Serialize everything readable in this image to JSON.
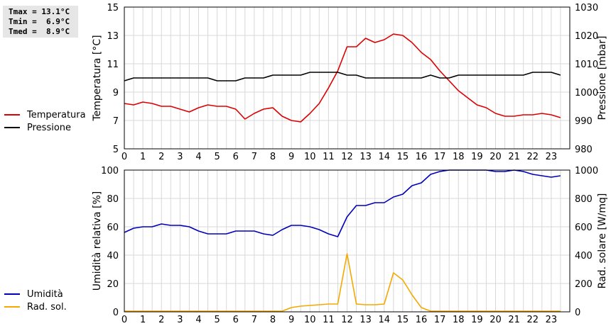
{
  "stats": {
    "line1": "Tmax = 13.1°C",
    "line2": "Tmin =  6.9°C",
    "line3": "Tmed =  8.9°C"
  },
  "colors": {
    "temperatura": "#dd0000",
    "pressione": "#000000",
    "umidita": "#0000bb",
    "radsol": "#f5a800",
    "grid": "#d8d8d8"
  },
  "legend_top": [
    {
      "label": "Temperatura",
      "color": "#dd0000"
    },
    {
      "label": "Pressione",
      "color": "#000000"
    }
  ],
  "legend_bottom": [
    {
      "label": "Umidità",
      "color": "#0000bb"
    },
    {
      "label": "Rad. sol.",
      "color": "#f5a800"
    }
  ],
  "chart_data": [
    {
      "type": "line",
      "ylabel": "Temperatura [°C]",
      "y2label": "Pressione [mbar]",
      "xlim": [
        0,
        24
      ],
      "ylim": [
        5,
        15
      ],
      "y2lim": [
        980,
        1030
      ],
      "xticks": [
        "0",
        "1",
        "2",
        "3",
        "4",
        "5",
        "6",
        "7",
        "8",
        "9",
        "10",
        "11",
        "12",
        "13",
        "14",
        "15",
        "16",
        "17",
        "18",
        "19",
        "20",
        "21",
        "22",
        "23"
      ],
      "yticks": [
        "5",
        "7",
        "9",
        "11",
        "13",
        "15"
      ],
      "y2ticks": [
        "980",
        "990",
        "1000",
        "1010",
        "1020",
        "1030"
      ],
      "grid": true,
      "series": [
        {
          "name": "Temperatura",
          "axis": "left",
          "x": [
            0,
            0.5,
            1,
            1.5,
            2,
            2.5,
            3,
            3.5,
            4,
            4.5,
            5,
            5.5,
            6,
            6.5,
            7,
            7.5,
            8,
            8.5,
            9,
            9.5,
            10,
            10.5,
            11,
            11.5,
            12,
            12.5,
            13,
            13.5,
            14,
            14.5,
            15,
            15.5,
            16,
            16.5,
            17,
            17.5,
            18,
            18.5,
            19,
            19.5,
            20,
            20.5,
            21,
            21.5,
            22,
            22.5,
            23,
            23.5
          ],
          "values": [
            8.2,
            8.1,
            8.3,
            8.2,
            8.0,
            8.0,
            7.8,
            7.6,
            7.9,
            8.1,
            8.0,
            8.0,
            7.8,
            7.1,
            7.5,
            7.8,
            7.9,
            7.3,
            7.0,
            6.9,
            7.5,
            8.2,
            9.3,
            10.5,
            12.2,
            12.2,
            12.8,
            12.5,
            12.7,
            13.1,
            13.0,
            12.5,
            11.8,
            11.3,
            10.5,
            9.8,
            9.1,
            8.6,
            8.1,
            7.9,
            7.5,
            7.3,
            7.3,
            7.4,
            7.4,
            7.5,
            7.4,
            7.2
          ]
        },
        {
          "name": "Pressione",
          "axis": "right",
          "x": [
            0,
            0.5,
            1,
            1.5,
            2,
            2.5,
            3,
            3.5,
            4,
            4.5,
            5,
            5.5,
            6,
            6.5,
            7,
            7.5,
            8,
            8.5,
            9,
            9.5,
            10,
            10.5,
            11,
            11.5,
            12,
            12.5,
            13,
            13.5,
            14,
            14.5,
            15,
            15.5,
            16,
            16.5,
            17,
            17.5,
            18,
            18.5,
            19,
            19.5,
            20,
            20.5,
            21,
            21.5,
            22,
            22.5,
            23,
            23.5
          ],
          "values": [
            1004,
            1005,
            1005,
            1005,
            1005,
            1005,
            1005,
            1005,
            1005,
            1005,
            1004,
            1004,
            1004,
            1005,
            1005,
            1005,
            1006,
            1006,
            1006,
            1006,
            1007,
            1007,
            1007,
            1007,
            1006,
            1006,
            1005,
            1005,
            1005,
            1005,
            1005,
            1005,
            1005,
            1006,
            1005,
            1005,
            1006,
            1006,
            1006,
            1006,
            1006,
            1006,
            1006,
            1006,
            1007,
            1007,
            1007,
            1006
          ]
        }
      ]
    },
    {
      "type": "line",
      "ylabel": "Umidità relativa [%]",
      "y2label": "Rad. solare [W/mq]",
      "xlim": [
        0,
        24
      ],
      "ylim": [
        0,
        100
      ],
      "y2lim": [
        0,
        1000
      ],
      "xticks": [
        "0",
        "1",
        "2",
        "3",
        "4",
        "5",
        "6",
        "7",
        "8",
        "9",
        "10",
        "11",
        "12",
        "13",
        "14",
        "15",
        "16",
        "17",
        "18",
        "19",
        "20",
        "21",
        "22",
        "23"
      ],
      "yticks": [
        "0",
        "20",
        "40",
        "60",
        "80",
        "100"
      ],
      "y2ticks": [
        "0",
        "200",
        "400",
        "600",
        "800",
        "1000"
      ],
      "grid": true,
      "series": [
        {
          "name": "Umidità",
          "axis": "left",
          "x": [
            0,
            0.5,
            1,
            1.5,
            2,
            2.5,
            3,
            3.5,
            4,
            4.5,
            5,
            5.5,
            6,
            6.5,
            7,
            7.5,
            8,
            8.5,
            9,
            9.5,
            10,
            10.5,
            11,
            11.5,
            12,
            12.5,
            13,
            13.5,
            14,
            14.5,
            15,
            15.5,
            16,
            16.5,
            17,
            17.5,
            18,
            18.5,
            19,
            19.5,
            20,
            20.5,
            21,
            21.5,
            22,
            22.5,
            23,
            23.5
          ],
          "values": [
            56,
            59,
            60,
            60,
            62,
            61,
            61,
            60,
            57,
            55,
            55,
            55,
            57,
            57,
            57,
            55,
            54,
            58,
            61,
            61,
            60,
            58,
            55,
            53,
            67,
            75,
            75,
            77,
            77,
            81,
            83,
            89,
            91,
            97,
            99,
            100,
            100,
            100,
            100,
            100,
            99,
            99,
            100,
            99,
            97,
            96,
            95,
            96
          ]
        },
        {
          "name": "Rad. sol.",
          "axis": "right",
          "x": [
            0,
            0.5,
            1,
            1.5,
            2,
            2.5,
            3,
            3.5,
            4,
            4.5,
            5,
            5.5,
            6,
            6.5,
            7,
            7.5,
            8,
            8.5,
            9,
            9.5,
            10,
            10.5,
            11,
            11.5,
            12,
            12.5,
            13,
            13.5,
            14,
            14.5,
            15,
            15.5,
            16,
            16.5,
            17,
            17.5,
            18,
            18.5,
            19,
            19.5,
            20,
            20.5,
            21,
            21.5,
            22,
            22.5,
            23,
            23.5
          ],
          "values": [
            5,
            5,
            5,
            5,
            5,
            5,
            5,
            5,
            5,
            5,
            5,
            5,
            5,
            5,
            5,
            5,
            5,
            5,
            30,
            40,
            45,
            50,
            55,
            55,
            410,
            55,
            50,
            50,
            55,
            275,
            225,
            120,
            30,
            5,
            5,
            5,
            5,
            5,
            5,
            5,
            5,
            5,
            5,
            5,
            5,
            5,
            5,
            5
          ]
        }
      ]
    }
  ]
}
